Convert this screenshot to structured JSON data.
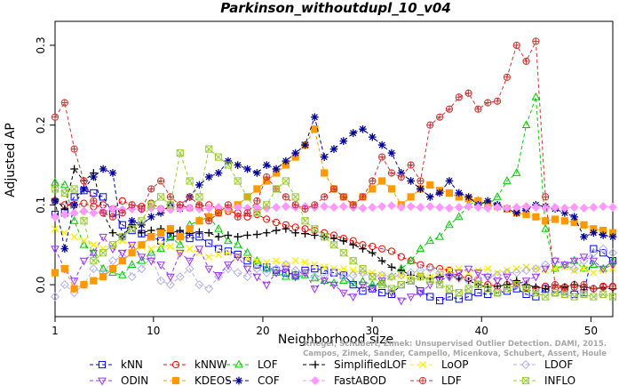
{
  "chart_data": {
    "type": "line",
    "title": "Parkinson_withoutdupl_10_v04",
    "xlabel": "Neighborhood size",
    "ylabel": "Adjusted AP",
    "xlim": [
      1,
      52
    ],
    "ylim": [
      -0.04,
      0.33
    ],
    "x_ticks": [
      1,
      10,
      20,
      30,
      40,
      50
    ],
    "y_ticks": [
      0.0,
      0.1,
      0.2,
      0.3
    ],
    "grid": false,
    "legend_position": "bottom",
    "watermark": [
      "Kriegel, Schubert, Zimek: Unsupervised Outlier Detection. DAMI, 2015.",
      "Campos, Zimek, Sander, Campello, Micenkova, Schubert, Assent, Houle"
    ],
    "series": [
      {
        "name": "kNN",
        "color": "#0000ff",
        "marker": "square",
        "values": [
          0.088,
          0.09,
          0.11,
          0.118,
          0.115,
          0.11,
          0.09,
          0.075,
          0.068,
          0.064,
          0.06,
          0.055,
          0.06,
          0.062,
          0.058,
          0.06,
          0.052,
          0.045,
          0.042,
          0.038,
          0.03,
          0.025,
          0.022,
          0.018,
          0.015,
          0.012,
          0.018,
          0.02,
          0.018,
          0.015,
          0.012,
          0.0,
          -0.008,
          -0.005,
          -0.01,
          -0.012,
          0.0,
          0.005,
          -0.008,
          -0.015,
          -0.02,
          -0.015,
          -0.018,
          -0.015,
          -0.01,
          -0.012,
          -0.01,
          -0.008,
          -0.005,
          -0.012,
          -0.015,
          -0.005,
          -0.01,
          -0.008,
          -0.012,
          -0.01,
          0.045,
          0.04,
          0.03
        ]
      },
      {
        "name": "kNNW",
        "color": "#ff0000",
        "marker": "circle",
        "values": [
          0.105,
          0.1,
          0.1,
          0.102,
          0.098,
          0.1,
          0.095,
          0.105,
          0.1,
          0.098,
          0.102,
          0.095,
          0.096,
          0.1,
          0.096,
          0.098,
          0.1,
          0.095,
          0.092,
          0.09,
          0.085,
          0.088,
          0.082,
          0.078,
          0.075,
          0.072,
          0.07,
          0.068,
          0.065,
          0.062,
          0.058,
          0.055,
          0.05,
          0.048,
          0.045,
          0.042,
          0.035,
          0.03,
          0.025,
          0.022,
          0.02,
          0.018,
          0.01,
          0.008,
          0.005,
          0.0,
          -0.002,
          0.0,
          0.002,
          -0.003,
          -0.005,
          -0.002,
          -0.005,
          -0.003,
          0.0,
          -0.003,
          -0.005,
          -0.002,
          -0.003
        ]
      },
      {
        "name": "LOF",
        "color": "#00cc00",
        "marker": "triangle",
        "values": [
          0.128,
          0.125,
          0.08,
          0.05,
          0.04,
          0.02,
          0.015,
          0.012,
          0.025,
          0.03,
          0.04,
          0.045,
          0.06,
          0.05,
          0.075,
          0.08,
          0.085,
          0.07,
          0.055,
          0.05,
          0.04,
          0.03,
          0.02,
          0.015,
          0.01,
          0.01,
          0.012,
          0.008,
          0.005,
          0.002,
          0.005,
          0.002,
          0.004,
          0.0,
          0.003,
          0.01,
          0.02,
          0.03,
          0.045,
          0.055,
          0.06,
          0.075,
          0.085,
          0.1,
          0.105,
          0.1,
          0.11,
          0.13,
          0.14,
          0.2,
          0.235,
          0.07,
          0.02,
          0.025,
          0.03,
          0.02,
          0.025,
          0.02,
          0.03
        ]
      },
      {
        "name": "SimplifiedLOF",
        "color": "#000000",
        "marker": "plus",
        "values": [
          0.107,
          0.095,
          0.145,
          0.13,
          0.14,
          0.09,
          0.065,
          0.06,
          0.075,
          0.065,
          0.068,
          0.07,
          0.065,
          0.068,
          0.064,
          0.066,
          0.065,
          0.06,
          0.062,
          0.06,
          0.062,
          0.063,
          0.065,
          0.068,
          0.07,
          0.065,
          0.064,
          0.062,
          0.06,
          0.058,
          0.055,
          0.05,
          0.045,
          0.04,
          0.03,
          0.022,
          0.018,
          0.012,
          0.01,
          0.008,
          0.01,
          0.012,
          0.008,
          0.005,
          0.0,
          -0.003,
          -0.002,
          0.0,
          0.005,
          0.0,
          -0.003,
          -0.005,
          0.0,
          -0.003,
          0.0,
          -0.003,
          -0.005,
          -0.004,
          -0.005
        ]
      },
      {
        "name": "LoOP",
        "color": "#ffee00",
        "marker": "x",
        "values": [
          0.07,
          0.065,
          0.06,
          0.055,
          0.05,
          0.045,
          0.05,
          0.055,
          0.05,
          0.048,
          0.045,
          0.05,
          0.048,
          0.04,
          0.045,
          0.04,
          0.035,
          0.038,
          0.04,
          0.035,
          0.033,
          0.03,
          0.028,
          0.03,
          0.025,
          0.03,
          0.028,
          0.025,
          0.022,
          0.02,
          0.02,
          0.018,
          0.015,
          0.015,
          0.012,
          0.01,
          0.012,
          0.01,
          0.012,
          0.01,
          0.015,
          0.018,
          0.02,
          0.015,
          0.018,
          0.02,
          0.015,
          0.018,
          0.02,
          0.022,
          0.02,
          0.018,
          0.02,
          0.022,
          0.018,
          0.02,
          0.015,
          0.018,
          0.02
        ]
      },
      {
        "name": "LDOF",
        "color": "#b0b0e8",
        "marker": "diamond",
        "values": [
          -0.015,
          0.0,
          -0.01,
          0.0,
          0.02,
          0.015,
          0.03,
          0.035,
          0.01,
          0.02,
          0.035,
          0.005,
          0.0,
          0.01,
          0.02,
          0.0,
          -0.005,
          0.01,
          0.02,
          0.015,
          0.01,
          0.02,
          0.015,
          0.02,
          0.025,
          0.018,
          0.015,
          0.01,
          0.012,
          0.015,
          0.01,
          0.012,
          0.015,
          0.01,
          0.012,
          0.01,
          0.012,
          0.015,
          0.018,
          0.02,
          0.015,
          0.01,
          0.008,
          0.005,
          0.008,
          0.01,
          0.012,
          0.015,
          0.015,
          0.018,
          0.02,
          0.025,
          0.03,
          0.025,
          0.02,
          0.03,
          0.04,
          0.045,
          0.04
        ]
      },
      {
        "name": "ODIN",
        "color": "#9933ff",
        "marker": "triangle-down",
        "values": [
          0.045,
          0.02,
          0.005,
          0.03,
          0.04,
          0.06,
          0.045,
          0.04,
          0.05,
          0.035,
          0.03,
          0.025,
          0.01,
          0.04,
          0.03,
          0.045,
          0.02,
          0.012,
          0.025,
          0.035,
          0.02,
          0.01,
          0.0,
          0.015,
          0.02,
          0.01,
          0.015,
          -0.005,
          0.005,
          0.0,
          -0.01,
          -0.015,
          0.0,
          -0.005,
          0.005,
          -0.01,
          -0.02,
          -0.015,
          -0.01,
          0.0,
          0.005,
          0.01,
          0.015,
          0.02,
          0.015,
          0.01,
          0.005,
          0.01,
          0.0,
          0.005,
          0.01,
          0.02,
          0.03,
          0.025,
          0.03,
          0.035,
          0.03,
          0.02,
          0.025
        ]
      },
      {
        "name": "KDEOS",
        "color": "#ff9900",
        "marker": "square-filled",
        "values": [
          0.015,
          0.02,
          -0.005,
          0.0,
          0.005,
          0.01,
          0.02,
          0.03,
          0.04,
          0.05,
          0.06,
          0.065,
          0.07,
          0.06,
          0.07,
          0.08,
          0.085,
          0.09,
          0.095,
          0.1,
          0.11,
          0.12,
          0.13,
          0.14,
          0.15,
          0.16,
          0.175,
          0.195,
          0.14,
          0.12,
          0.11,
          0.1,
          0.11,
          0.12,
          0.13,
          0.12,
          0.1,
          0.11,
          0.12,
          0.125,
          0.118,
          0.115,
          0.11,
          0.108,
          0.105,
          0.1,
          0.098,
          0.095,
          0.09,
          0.088,
          0.085,
          0.08,
          0.082,
          0.08,
          0.078,
          0.075,
          0.07,
          0.068,
          0.065
        ]
      },
      {
        "name": "COF",
        "color": "#000099",
        "marker": "star",
        "values": [
          0.105,
          0.045,
          0.1,
          0.12,
          0.135,
          0.145,
          0.14,
          0.06,
          0.08,
          0.075,
          0.085,
          0.09,
          0.1,
          0.095,
          0.11,
          0.125,
          0.135,
          0.14,
          0.155,
          0.15,
          0.145,
          0.14,
          0.15,
          0.145,
          0.155,
          0.165,
          0.175,
          0.21,
          0.16,
          0.17,
          0.18,
          0.19,
          0.195,
          0.185,
          0.175,
          0.165,
          0.14,
          0.13,
          0.12,
          0.11,
          0.115,
          0.13,
          0.115,
          0.11,
          0.1,
          0.105,
          0.1,
          0.095,
          0.09,
          0.095,
          0.1,
          0.098,
          0.095,
          0.09,
          0.085,
          0.06,
          0.065,
          0.062,
          0.06
        ]
      },
      {
        "name": "FastABOD",
        "color": "#ff99ff",
        "marker": "diamond-filled",
        "values": [
          0.085,
          0.088,
          0.09,
          0.092,
          0.09,
          0.092,
          0.095,
          0.094,
          0.095,
          0.094,
          0.096,
          0.095,
          0.094,
          0.095,
          0.096,
          0.095,
          0.096,
          0.097,
          0.096,
          0.097,
          0.096,
          0.097,
          0.096,
          0.097,
          0.098,
          0.097,
          0.098,
          0.097,
          0.098,
          0.097,
          0.098,
          0.097,
          0.096,
          0.097,
          0.098,
          0.099,
          0.097,
          0.098,
          0.097,
          0.098,
          0.097,
          0.096,
          0.097,
          0.098,
          0.097,
          0.096,
          0.097,
          0.096,
          0.097,
          0.098,
          0.097,
          0.096,
          0.097,
          0.096,
          0.097,
          0.096,
          0.097,
          0.098,
          0.097
        ]
      },
      {
        "name": "LDF",
        "color": "#cc3333",
        "marker": "circle-plus",
        "values": [
          0.21,
          0.228,
          0.17,
          0.13,
          0.105,
          0.09,
          0.085,
          0.09,
          0.1,
          0.095,
          0.12,
          0.13,
          0.11,
          0.1,
          0.11,
          0.1,
          0.08,
          0.09,
          0.1,
          0.085,
          0.09,
          0.105,
          0.135,
          0.12,
          0.11,
          0.1,
          0.095,
          0.1,
          0.11,
          0.12,
          0.11,
          0.1,
          0.11,
          0.13,
          0.16,
          0.14,
          0.135,
          0.15,
          0.13,
          0.2,
          0.21,
          0.22,
          0.235,
          0.24,
          0.22,
          0.228,
          0.23,
          0.26,
          0.3,
          0.28,
          0.305,
          0.11,
          0.0,
          -0.005,
          -0.003,
          0.0,
          -0.005,
          -0.003,
          -0.002
        ]
      },
      {
        "name": "INFLO",
        "color": "#99cc33",
        "marker": "x-square",
        "values": [
          0.12,
          0.115,
          0.12,
          0.08,
          0.03,
          0.04,
          0.05,
          0.06,
          0.07,
          0.08,
          0.1,
          0.11,
          0.1,
          0.165,
          0.13,
          0.11,
          0.17,
          0.16,
          0.15,
          0.13,
          0.11,
          0.09,
          0.1,
          0.12,
          0.13,
          0.11,
          0.08,
          0.07,
          0.06,
          0.05,
          0.04,
          0.03,
          0.02,
          0.01,
          0.0,
          -0.005,
          0.0,
          0.005,
          0.01,
          0.005,
          0.0,
          -0.005,
          -0.01,
          -0.005,
          0.0,
          -0.005,
          -0.01,
          -0.005,
          0.0,
          -0.005,
          -0.01,
          -0.015,
          -0.01,
          -0.012,
          -0.015,
          -0.012,
          -0.015,
          -0.012,
          -0.015
        ]
      }
    ]
  }
}
